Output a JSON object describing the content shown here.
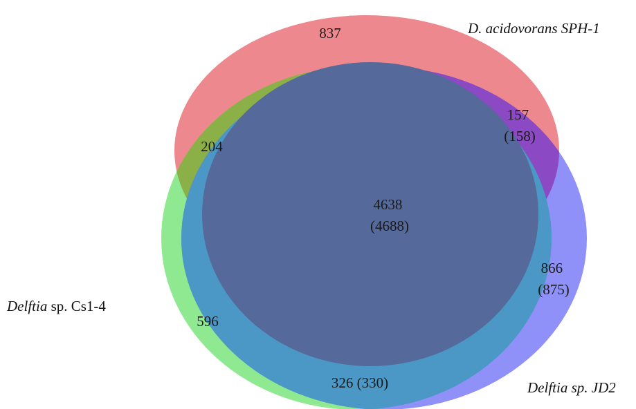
{
  "sets": [
    {
      "id": "sph1",
      "label": [
        {
          "text": "D. acidovorans SPH-1",
          "italic": true
        }
      ],
      "color": "#e8606a"
    },
    {
      "id": "cs14",
      "label": [
        {
          "text": "Delftia",
          "italic": true
        },
        {
          "text": " sp. Cs1-4",
          "italic": false
        }
      ],
      "color": "#5fe063"
    },
    {
      "id": "jd2",
      "label": [
        {
          "text": "Delftia sp. JD2",
          "italic": true
        }
      ],
      "color": "#6a6cf6"
    }
  ],
  "regions": [
    {
      "id": "sph1-only",
      "lines": [
        "837"
      ]
    },
    {
      "id": "sph1-cs14",
      "lines": [
        "204"
      ]
    },
    {
      "id": "sph1-jd2",
      "lines": [
        "157",
        "(158)"
      ]
    },
    {
      "id": "all-three",
      "lines": [
        "4638",
        "(4688)"
      ]
    },
    {
      "id": "jd2-only",
      "lines": [
        "866",
        "(875)"
      ]
    },
    {
      "id": "cs14-only",
      "lines": [
        "596"
      ]
    },
    {
      "id": "cs14-jd2",
      "lines": [
        "326 (330)"
      ]
    }
  ],
  "core_color": "#55699a"
}
